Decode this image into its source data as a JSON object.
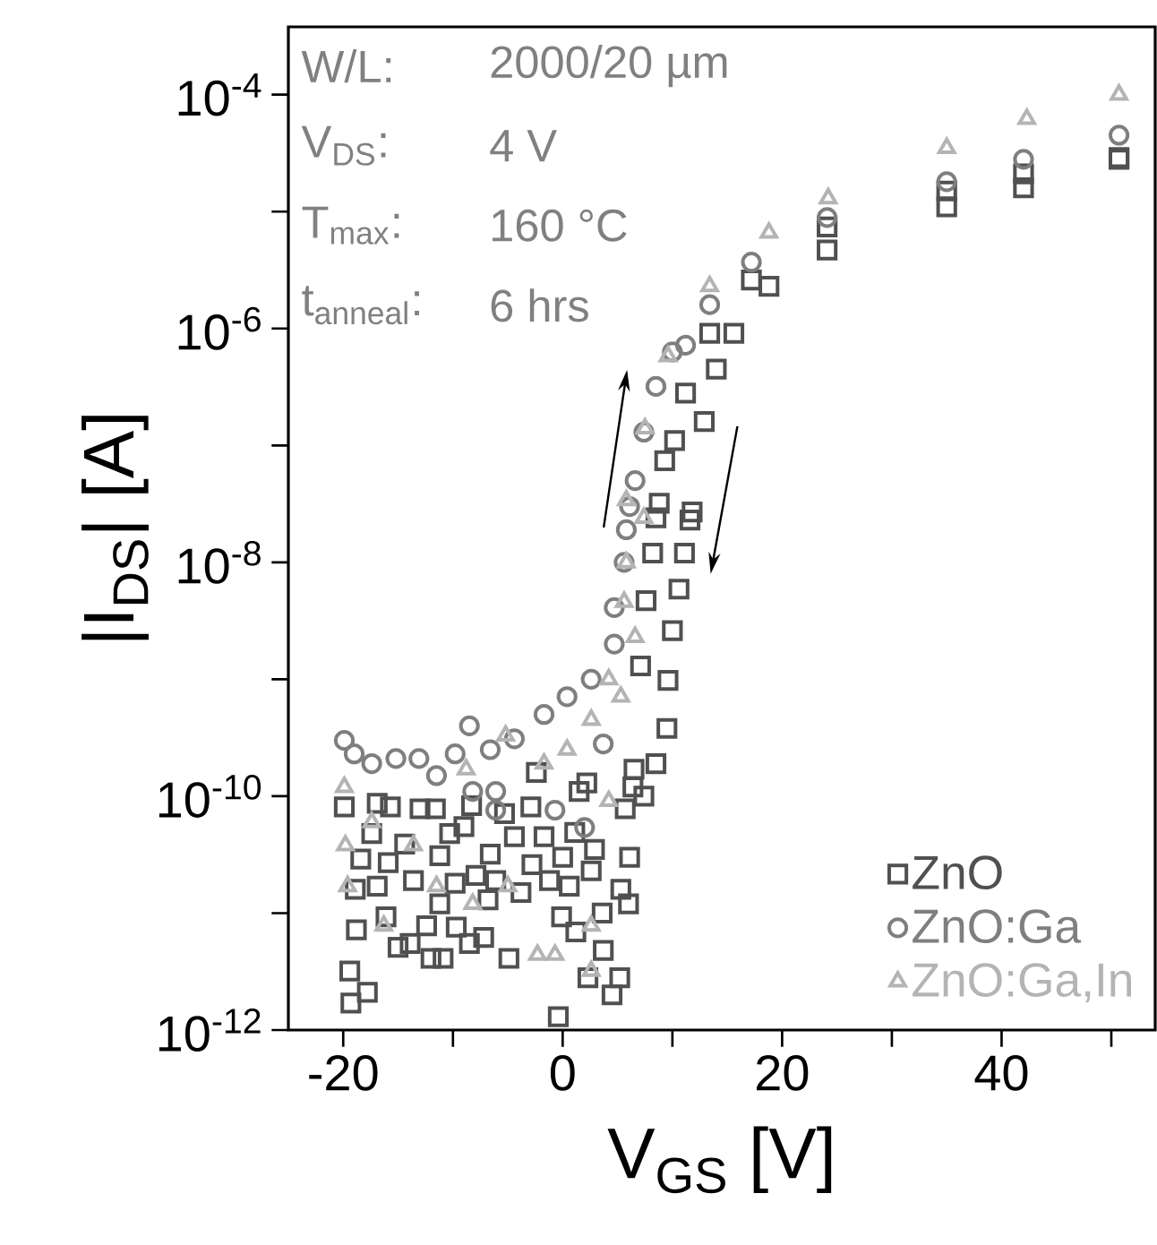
{
  "chart_data": {
    "type": "scatter",
    "xlabel": "V$_{GS}$ [V]",
    "ylabel": "|I$_{DS}$| [A]",
    "annotations": [
      "W/L:",
      "2000/20 µm",
      "V$_{DS}$:",
      "4 V",
      "T$_{max}$:",
      "160 °C",
      "t$_{anneal}$:",
      "6 hrs"
    ],
    "xlim": [
      -25,
      54
    ],
    "ylim": [
      1e-12,
      0.00038
    ],
    "log": "y",
    "legend": "bottom right",
    "xticks": [
      -20,
      {
        "value": -10,
        "label": null
      },
      0,
      {
        "value": 10,
        "label": null
      },
      20,
      {
        "value": 30,
        "label": null
      },
      40,
      {
        "value": 50,
        "label": null
      }
    ],
    "yticks": [
      {
        "value": 1e-12,
        "label": "10$^{-12}$"
      },
      {
        "value": 1e-11,
        "label": null
      },
      {
        "value": 1e-10,
        "label": "10$^{-10}$"
      },
      {
        "value": 1e-09,
        "label": null
      },
      {
        "value": 1e-08,
        "label": "10$^{-8}$"
      },
      {
        "value": 1e-07,
        "label": null
      },
      {
        "value": 1e-06,
        "label": "10$^{-6}$"
      },
      {
        "value": 1e-05,
        "label": null
      },
      {
        "value": 0.0001,
        "label": "10$^{-4}$"
      }
    ],
    "series": [
      {
        "name": "ZnO",
        "color": "#505050",
        "marker": "square",
        "x": [
          -19.9,
          -19.4,
          -19.3,
          -17.8,
          -18.8,
          -18.9,
          -18.4,
          -17.4,
          -16.9,
          -15.7,
          -16.9,
          -16.1,
          -15.9,
          -14.4,
          -15.0,
          -13.9,
          -13.6,
          -13.0,
          -12.4,
          -12.0,
          -11.2,
          -11.6,
          -10.9,
          -11.2,
          -10.3,
          -9.8,
          -9.7,
          -9.0,
          -8.3,
          -8.5,
          -7.9,
          -7.2,
          -6.6,
          -6.8,
          -5.3,
          -6.1,
          -4.9,
          -4.4,
          -3.8,
          -2.9,
          -2.4,
          -2.8,
          -1.7,
          -1.2,
          -0.4,
          -0.1,
          0.0,
          1.2,
          0.6,
          1.1,
          1.5,
          2.2,
          2.3,
          2.9,
          2.6,
          3.7,
          3.6,
          4.5,
          5.2,
          5.3,
          6.0,
          5.7,
          6.1,
          6.5,
          6.4,
          7.4,
          8.5,
          7.1,
          7.6,
          8.2,
          8.5,
          8.8,
          9.3,
          10.2,
          11.2,
          13.4,
          17.2,
          24.1,
          35,
          42,
          50.7,
          9.5,
          9.6,
          10.0,
          10.6,
          11.1,
          11.6,
          11.8,
          12.9,
          14.0,
          15.6,
          18.8,
          24.1,
          35,
          42,
          50.7
        ],
        "values": [
          8.1e-11,
          3.2e-12,
          1.7e-12,
          2.1e-12,
          7.2e-12,
          1.6e-11,
          2.9e-11,
          4.8e-11,
          8.7e-11,
          8.1e-11,
          1.7e-11,
          9.3e-12,
          2.7e-11,
          3.9e-11,
          5.1e-12,
          5.5e-12,
          1.9e-11,
          7.8e-11,
          7.8e-12,
          4.1e-12,
          1.2e-11,
          7.8e-11,
          4.1e-12,
          3.1e-11,
          4.8e-11,
          1.8e-11,
          7.6e-12,
          5.5e-11,
          8.3e-11,
          5.5e-12,
          2.1e-11,
          6.2e-12,
          3.2e-11,
          1.3e-11,
          7.1e-11,
          1.9e-11,
          4.1e-12,
          4.5e-11,
          1.5e-11,
          8.1e-11,
          1.6e-10,
          2.6e-11,
          4.5e-11,
          1.9e-11,
          1.3e-12,
          9.3e-12,
          3e-11,
          6.9e-12,
          1.7e-11,
          4.9e-11,
          1.1e-10,
          1.3e-10,
          2.8e-12,
          3.5e-11,
          2.3e-11,
          4.8e-12,
          1e-11,
          2e-12,
          2.8e-12,
          1.6e-11,
          1.2e-11,
          7.8e-11,
          3e-11,
          1.7e-10,
          1.2e-10,
          1e-10,
          1.9e-10,
          1.3e-09,
          4.7e-09,
          1.2e-08,
          2.4e-08,
          3.2e-08,
          7.4e-08,
          1.1e-07,
          2.8e-07,
          9.1e-07,
          2.6e-06,
          7.4e-06,
          1.5e-05,
          2.1e-05,
          2.9e-05,
          3.8e-10,
          9.8e-10,
          2.6e-09,
          5.9e-09,
          1.2e-08,
          2.3e-08,
          2.7e-08,
          1.6e-07,
          4.5e-07,
          9.1e-07,
          2.3e-06,
          4.7e-06,
          1.1e-05,
          1.6e-05,
          2.8e-05
        ]
      },
      {
        "name": "ZnO:Ga",
        "color": "#7f7f7f",
        "marker": "circle",
        "x": [
          -19.9,
          -19.0,
          -17.4,
          -15.2,
          -13.1,
          -11.5,
          -9.8,
          -8.5,
          -6.6,
          -6.1,
          -4.4,
          -1.7,
          0.4,
          2.6,
          3.7,
          4.7,
          4.7,
          5.6,
          5.8,
          6.1,
          -0.7,
          2.0,
          -6.1,
          -8.2,
          6.6,
          7.4,
          8.5,
          10,
          11.2,
          13.4,
          17.2,
          24.1,
          35,
          42,
          50.7
        ],
        "values": [
          3e-10,
          2.3e-10,
          1.9e-10,
          2.1e-10,
          2.1e-10,
          1.5e-10,
          2.3e-10,
          4e-10,
          2.5e-10,
          1.1e-10,
          3.1e-10,
          5e-10,
          7.1e-10,
          1e-09,
          2.8e-10,
          2e-09,
          4.1e-09,
          1e-08,
          1.9e-08,
          3e-08,
          7.6e-11,
          5.4e-11,
          7.6e-11,
          1.1e-10,
          5e-08,
          1.3e-07,
          3.2e-07,
          6.3e-07,
          7.2e-07,
          1.6e-06,
          3.7e-06,
          8.9e-06,
          1.8e-05,
          2.8e-05,
          4.5e-05
        ]
      },
      {
        "name": "ZnO:Ga,In",
        "color": "#b4b4b4",
        "marker": "triangle",
        "x": [
          -19.9,
          -19.8,
          -19.6,
          -17.4,
          -16.3,
          -13.6,
          -11.5,
          -8.8,
          -8.2,
          -5.2,
          -5.0,
          -2.3,
          -0.7,
          -1.7,
          0.4,
          2.6,
          4.2,
          2.6,
          2.6,
          4.2,
          5.3,
          6.6,
          5.6,
          5.8,
          7.4,
          5.8,
          7.5,
          9.6,
          13.4,
          18.8,
          24.2,
          35,
          42.3,
          50.7
        ],
        "values": [
          1.2e-10,
          3.8e-11,
          1.7e-11,
          6e-11,
          7.8e-12,
          3.8e-11,
          1.7e-11,
          1.7e-10,
          1.2e-11,
          3.3e-10,
          1.7e-11,
          4.4e-12,
          4.4e-12,
          1.9e-10,
          2.5e-10,
          4.5e-10,
          9.1e-11,
          7.8e-12,
          3.2e-12,
          1e-09,
          7.1e-10,
          2.3e-09,
          4.6e-09,
          1e-08,
          2.4e-08,
          3.4e-08,
          1.4e-07,
          5.8e-07,
          2.3e-06,
          6.6e-06,
          1.3e-05,
          3.5e-05,
          6.2e-05,
          0.0001
        ]
      }
    ]
  }
}
